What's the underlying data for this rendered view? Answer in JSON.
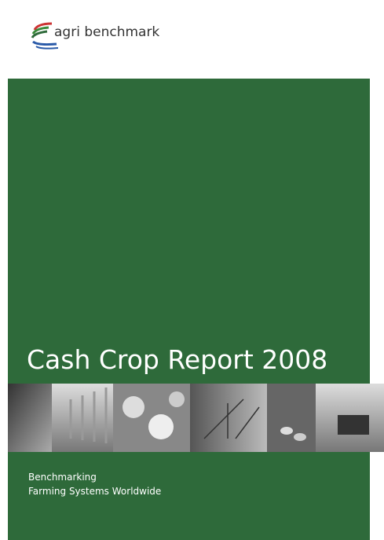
{
  "logo": {
    "text": "agri benchmark"
  },
  "title": "Cash Crop Report 2008",
  "subtitle": [
    "Benchmarking",
    "Farming Systems Worldwide"
  ]
}
